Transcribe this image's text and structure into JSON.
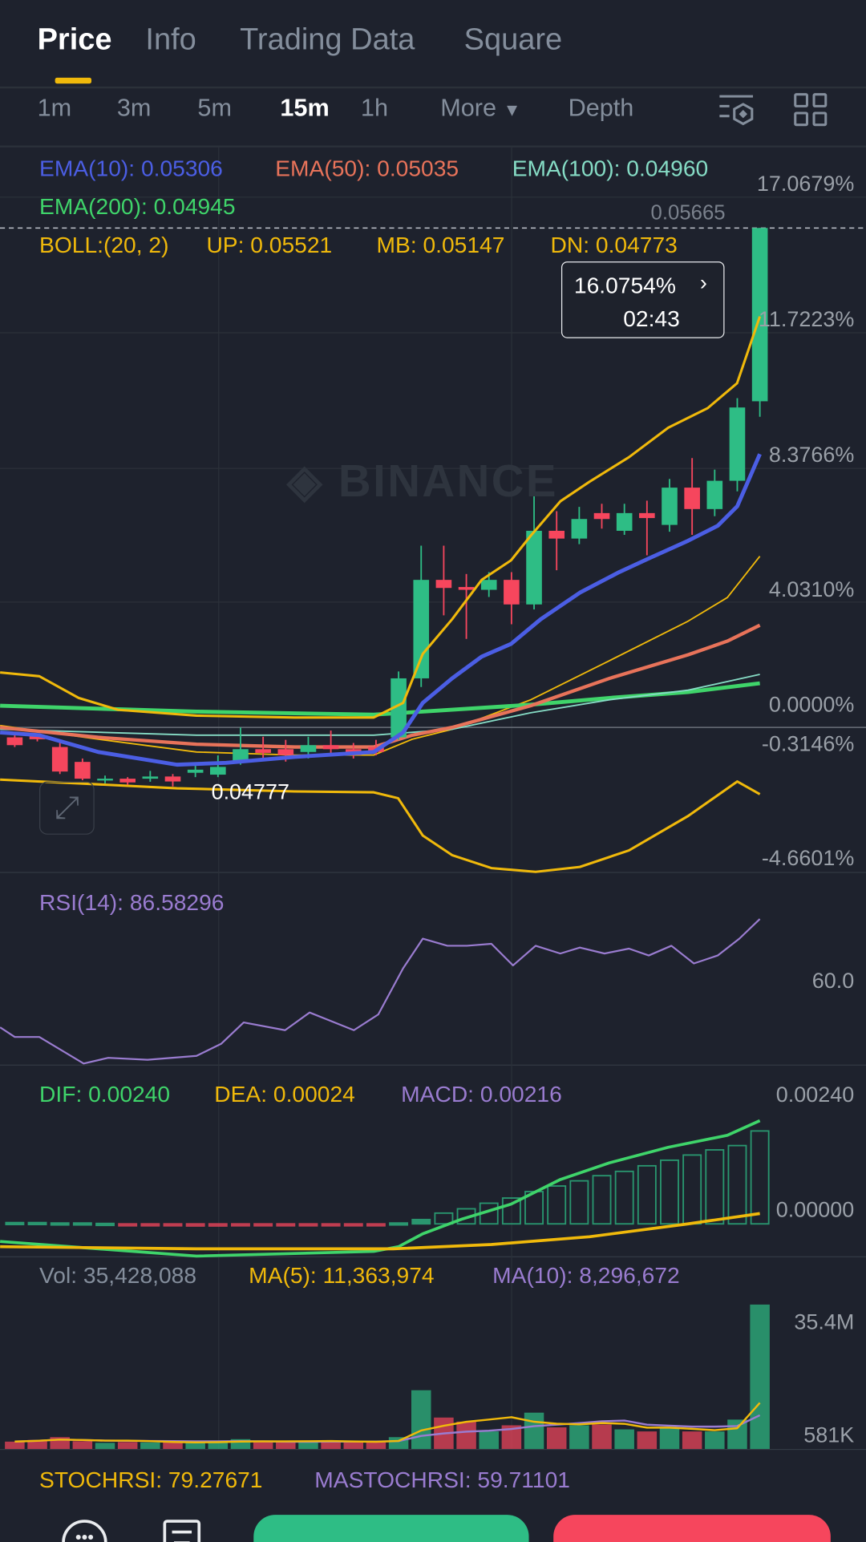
{
  "tabs": [
    {
      "label": "Price",
      "active": true
    },
    {
      "label": "Info"
    },
    {
      "label": "Trading Data"
    },
    {
      "label": "Square"
    }
  ],
  "intervals": [
    {
      "label": "1m"
    },
    {
      "label": "3m"
    },
    {
      "label": "5m"
    },
    {
      "label": "15m",
      "active": true
    },
    {
      "label": "1h"
    },
    {
      "label": "More"
    },
    {
      "label": "Depth"
    }
  ],
  "toolbar_icons": [
    "indicator-settings-icon",
    "grid-layout-icon"
  ],
  "colors": {
    "up": "#2ebd85",
    "down": "#f6465d",
    "accent": "#f0b90b",
    "ema10": "#4b5ee4",
    "ema50": "#e8735a",
    "ema100": "#86dcc5",
    "ema200": "#3fd46a",
    "boll": "#f0b90b",
    "rsi": "#9a7cd0",
    "bg": "#1e222d"
  },
  "indicators": {
    "ema10": "EMA(10): 0.05306",
    "ema50": "EMA(50): 0.05035",
    "ema100": "EMA(100): 0.04960",
    "ema200": "EMA(200): 0.04945",
    "boll": "BOLL:(20, 2)",
    "boll_up": "UP: 0.05521",
    "boll_mb": "MB: 0.05147",
    "boll_dn": "DN: 0.04773",
    "rsi": "RSI(14): 86.58296",
    "dif": "DIF: 0.00240",
    "dea": "DEA: 0.00024",
    "macd": "MACD: 0.00216",
    "vol": "Vol: 35,428,088",
    "vol_ma5": "MA(5): 11,363,974",
    "vol_ma10": "MA(10): 8,296,672",
    "stochrsi": "STOCHRSI: 79.27671",
    "mastochrsi": "MASTOCHRSI: 59.71101"
  },
  "price_axis": [
    "17.0679%",
    "11.7223%",
    "8.3766%",
    "4.0310%",
    "0.0000%",
    "-0.3146%",
    "-4.6601%"
  ],
  "current_price_label": "0.05665",
  "tooltip": {
    "change": "16.0754%",
    "countdown": "02:43"
  },
  "low_marker": "0.04777",
  "watermark": "BINANCE",
  "rsi_axis": [
    "60.0"
  ],
  "macd_axis": [
    "0.00240",
    "0.00000"
  ],
  "vol_axis": [
    "35.4M",
    "581K"
  ],
  "chart_data": {
    "type": "candlestick",
    "price_unit": "percent change",
    "candles": [
      [
        -0.32,
        -0.57,
        -0.25,
        -0.63
      ],
      [
        -0.25,
        -0.38,
        -0.2,
        -0.45
      ],
      [
        -0.63,
        -1.42,
        -0.5,
        -1.5
      ],
      [
        -1.11,
        -1.65,
        -1.0,
        -1.7
      ],
      [
        -1.71,
        -1.65,
        -1.55,
        -1.8
      ],
      [
        -1.65,
        -1.77,
        -1.6,
        -1.85
      ],
      [
        -1.65,
        -1.58,
        -1.4,
        -1.75
      ],
      [
        -1.58,
        -1.74,
        -1.5,
        -1.9
      ],
      [
        -1.46,
        -1.36,
        -1.2,
        -1.6
      ],
      [
        -1.52,
        -1.27,
        -0.9,
        -1.6
      ],
      [
        -1.11,
        -0.7,
        0,
        -1.2
      ],
      [
        -0.7,
        -0.82,
        -0.3,
        -1.0
      ],
      [
        -0.7,
        -0.89,
        -0.4,
        -1.1
      ],
      [
        -0.79,
        -0.57,
        -0.3,
        -1.0
      ],
      [
        -0.57,
        -0.7,
        -0.1,
        -0.9
      ],
      [
        -0.7,
        -0.89,
        -0.5,
        -1.0
      ],
      [
        -0.63,
        -0.79,
        -0.4,
        -0.9
      ],
      [
        -0.32,
        1.58,
        1.8,
        -0.4
      ],
      [
        1.58,
        4.75,
        5.85,
        1.3
      ],
      [
        4.75,
        4.49,
        5.85,
        3.61
      ],
      [
        4.52,
        4.43,
        4.94,
        2.85
      ],
      [
        4.43,
        4.75,
        5.0,
        4.2
      ],
      [
        4.75,
        3.96,
        5.0,
        3.32
      ],
      [
        3.96,
        6.33,
        7.44,
        3.8
      ],
      [
        6.33,
        6.08,
        6.96,
        5.06
      ],
      [
        6.08,
        6.71,
        7.1,
        5.9
      ],
      [
        6.9,
        6.71,
        7.2,
        6.4
      ],
      [
        6.33,
        6.9,
        7.2,
        6.2
      ],
      [
        6.9,
        6.74,
        7.3,
        5.54
      ],
      [
        6.52,
        7.72,
        8.0,
        6.3
      ],
      [
        7.72,
        7.03,
        8.67,
        6.2
      ],
      [
        7.03,
        7.94,
        8.3,
        6.8
      ],
      [
        7.94,
        10.3,
        10.6,
        7.6
      ],
      [
        10.5,
        16.08,
        16.08,
        10.0
      ]
    ],
    "lines": {
      "ema10": [
        [
          0.35,
          -0.16
        ],
        [
          2.09,
          -0.25
        ],
        [
          4.7,
          -0.79
        ],
        [
          8.18,
          -1.2
        ],
        [
          10.36,
          -1.14
        ],
        [
          13.4,
          -0.95
        ],
        [
          16.9,
          -0.79
        ],
        [
          18.2,
          -0.16
        ],
        [
          19.07,
          0.79
        ],
        [
          20.37,
          1.58
        ],
        [
          21.68,
          2.28
        ],
        [
          22.98,
          2.69
        ],
        [
          24.29,
          3.48
        ],
        [
          26.03,
          4.34
        ],
        [
          27.77,
          5.0
        ],
        [
          29.08,
          5.44
        ],
        [
          30.82,
          6.01
        ],
        [
          32.13,
          6.49
        ],
        [
          33.0,
          7.12
        ],
        [
          34.0,
          8.8
        ]
      ],
      "ema50": [
        [
          0.35,
          0
        ],
        [
          4.7,
          -0.32
        ],
        [
          9.05,
          -0.54
        ],
        [
          13.4,
          -0.63
        ],
        [
          16.9,
          -0.63
        ],
        [
          18.6,
          -0.25
        ],
        [
          20.37,
          0
        ],
        [
          23.85,
          0.7
        ],
        [
          27.34,
          1.58
        ],
        [
          30.82,
          2.34
        ],
        [
          32.56,
          2.78
        ],
        [
          34.0,
          3.29
        ]
      ],
      "ema100": [
        [
          0.35,
          -0.06
        ],
        [
          9.05,
          -0.25
        ],
        [
          16.9,
          -0.25
        ],
        [
          20.37,
          -0.06
        ],
        [
          23.85,
          0.47
        ],
        [
          27.34,
          0.89
        ],
        [
          30.82,
          1.2
        ],
        [
          34.0,
          1.71
        ]
      ],
      "ema200": [
        [
          0.35,
          0.7
        ],
        [
          9.05,
          0.51
        ],
        [
          16.9,
          0.41
        ],
        [
          20.37,
          0.57
        ],
        [
          23.85,
          0.73
        ],
        [
          27.34,
          0.95
        ],
        [
          30.82,
          1.14
        ],
        [
          34.0,
          1.42
        ]
      ],
      "boll_up": [
        [
          0.35,
          1.77
        ],
        [
          2.09,
          1.65
        ],
        [
          3.83,
          0.95
        ],
        [
          5.57,
          0.57
        ],
        [
          9.05,
          0.38
        ],
        [
          13.4,
          0.32
        ],
        [
          16.9,
          0.32
        ],
        [
          18.2,
          0.79
        ],
        [
          19.07,
          2.37
        ],
        [
          20.37,
          3.48
        ],
        [
          21.68,
          4.75
        ],
        [
          22.98,
          5.38
        ],
        [
          23.85,
          6.17
        ],
        [
          25.16,
          7.28
        ],
        [
          26.46,
          7.91
        ],
        [
          28.2,
          8.7
        ],
        [
          29.94,
          9.65
        ],
        [
          31.69,
          10.28
        ],
        [
          32.99,
          11.08
        ],
        [
          34.0,
          13.23
        ]
      ],
      "boll_mb": [
        [
          0.35,
          0.06
        ],
        [
          4.7,
          -0.38
        ],
        [
          9.05,
          -0.79
        ],
        [
          13.4,
          -0.89
        ],
        [
          16.9,
          -0.89
        ],
        [
          18.6,
          -0.38
        ],
        [
          20.37,
          -0.06
        ],
        [
          23.85,
          0.89
        ],
        [
          27.34,
          2.15
        ],
        [
          30.82,
          3.42
        ],
        [
          32.56,
          4.18
        ],
        [
          34.0,
          5.51
        ]
      ],
      "boll_dn": [
        [
          0.35,
          -1.68
        ],
        [
          3.83,
          -1.8
        ],
        [
          8.18,
          -1.96
        ],
        [
          13.4,
          -2.06
        ],
        [
          16.9,
          -2.09
        ],
        [
          17.98,
          -2.28
        ],
        [
          19.07,
          -3.48
        ],
        [
          20.37,
          -4.11
        ],
        [
          22.11,
          -4.53
        ],
        [
          24.07,
          -4.65
        ],
        [
          26.03,
          -4.49
        ],
        [
          28.2,
          -3.96
        ],
        [
          30.82,
          -2.85
        ],
        [
          33.0,
          -1.74
        ],
        [
          34.0,
          -2.15
        ]
      ]
    },
    "rsi": [
      [
        0.35,
        48.6
      ],
      [
        1,
        45.2
      ],
      [
        2.09,
        45.2
      ],
      [
        4.05,
        35.9
      ],
      [
        5.14,
        37.9
      ],
      [
        6.88,
        37.2
      ],
      [
        9.05,
        38.6
      ],
      [
        10.14,
        42.8
      ],
      [
        11.14,
        50.3
      ],
      [
        12.97,
        47.6
      ],
      [
        14.06,
        53.8
      ],
      [
        16.02,
        47.6
      ],
      [
        17.1,
        53.1
      ],
      [
        18.2,
        69.3
      ],
      [
        19.07,
        79.7
      ],
      [
        20.16,
        77.2
      ],
      [
        21.03,
        77.2
      ],
      [
        22.11,
        77.9
      ],
      [
        23.07,
        70.3
      ],
      [
        24.07,
        77.2
      ],
      [
        25.16,
        74.5
      ],
      [
        26.03,
        76.6
      ],
      [
        27.12,
        74.5
      ],
      [
        28.2,
        76.2
      ],
      [
        29.08,
        73.8
      ],
      [
        30.08,
        77.2
      ],
      [
        31.08,
        71.0
      ],
      [
        32.13,
        73.8
      ],
      [
        33.09,
        79.7
      ],
      [
        34.0,
        86.58
      ]
    ],
    "macd_hist": [
      3e-05,
      3e-05,
      2e-05,
      2e-05,
      1e-05,
      -3e-05,
      -4e-05,
      -4e-05,
      -5e-05,
      -5e-05,
      -4e-05,
      -4e-05,
      -4e-05,
      -3e-05,
      -3e-05,
      -3e-05,
      -2e-05,
      2e-05,
      0.0001,
      0.00025,
      0.00035,
      0.00048,
      0.0006,
      0.00075,
      0.00088,
      0.001,
      0.00112,
      0.00122,
      0.00135,
      0.00148,
      0.0016,
      0.00172,
      0.00182,
      0.00216
    ],
    "dif": [
      [
        0.35,
        -0.00041
      ],
      [
        9.05,
        -0.00075
      ],
      [
        16.9,
        -0.00064
      ],
      [
        18.0,
        -0.00053
      ],
      [
        19.07,
        -0.00023
      ],
      [
        20.8,
        0.00011
      ],
      [
        22.98,
        0.00046
      ],
      [
        25.16,
        0.00103
      ],
      [
        27.34,
        0.00142
      ],
      [
        29.94,
        0.00178
      ],
      [
        32.56,
        0.00206
      ],
      [
        34.0,
        0.0024
      ]
    ],
    "dea": [
      [
        0.35,
        -0.00053
      ],
      [
        9.05,
        -0.00058
      ],
      [
        17.76,
        -0.00058
      ],
      [
        22.11,
        -0.00048
      ],
      [
        26.46,
        -0.0003
      ],
      [
        30.82,
        0
      ],
      [
        34.0,
        0.00024
      ]
    ],
    "volume_millions": [
      1.8,
      2.2,
      2.9,
      1.9,
      1.5,
      1.7,
      1.6,
      1.8,
      1.5,
      1.7,
      2.4,
      1.9,
      1.8,
      1.7,
      1.9,
      1.8,
      1.6,
      2.9,
      14.4,
      7.7,
      6.7,
      4.3,
      5.8,
      8.9,
      5.3,
      5.8,
      6.0,
      4.8,
      4.3,
      5.3,
      4.3,
      4.3,
      7.2,
      35.4
    ]
  },
  "bottom_bar": {
    "icons": [
      "chat-icon",
      "orders-icon"
    ]
  }
}
